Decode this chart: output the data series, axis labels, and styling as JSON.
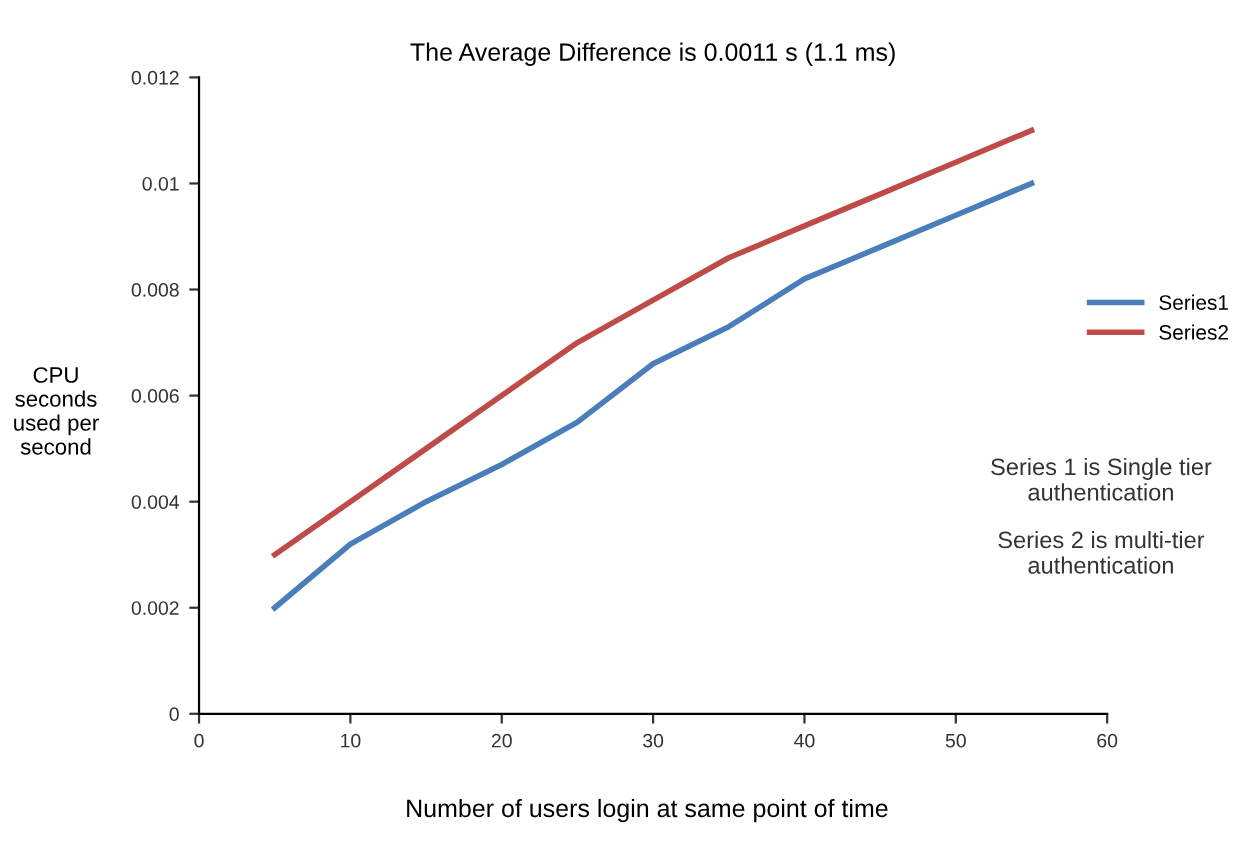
{
  "chart_data": {
    "type": "line",
    "title": "The Average Difference is 0.0011 s (1.1 ms)",
    "xlabel": "Number of users login at same point of time",
    "ylabel": "CPU\nseconds\nused per\nsecond",
    "x": [
      5,
      10,
      15,
      20,
      25,
      30,
      35,
      40,
      45,
      50,
      55
    ],
    "series": [
      {
        "name": "Series1",
        "color": "#4a7ebb",
        "values": [
          0.002,
          0.0032,
          0.004,
          0.0047,
          0.0055,
          0.0066,
          0.0073,
          0.0082,
          0.0088,
          0.0094,
          0.01
        ]
      },
      {
        "name": "Series2",
        "color": "#be4b48",
        "values": [
          0.003,
          0.004,
          0.005,
          0.006,
          0.007,
          0.0078,
          0.0086,
          0.0092,
          0.0098,
          0.0104,
          0.011
        ]
      }
    ],
    "xlim": [
      0,
      60
    ],
    "xticks": [
      0,
      10,
      20,
      30,
      40,
      50,
      60
    ],
    "ylim": [
      0,
      0.012
    ],
    "yticks": [
      0,
      0.002,
      0.004,
      0.006,
      0.008,
      0.01,
      0.012
    ],
    "annotations": [
      "Series 1 is Single tier\nauthentication",
      "Series 2 is multi-tier\nauthentication"
    ],
    "legend": "right",
    "grid": false,
    "marker": "none",
    "line_style": "solid"
  }
}
